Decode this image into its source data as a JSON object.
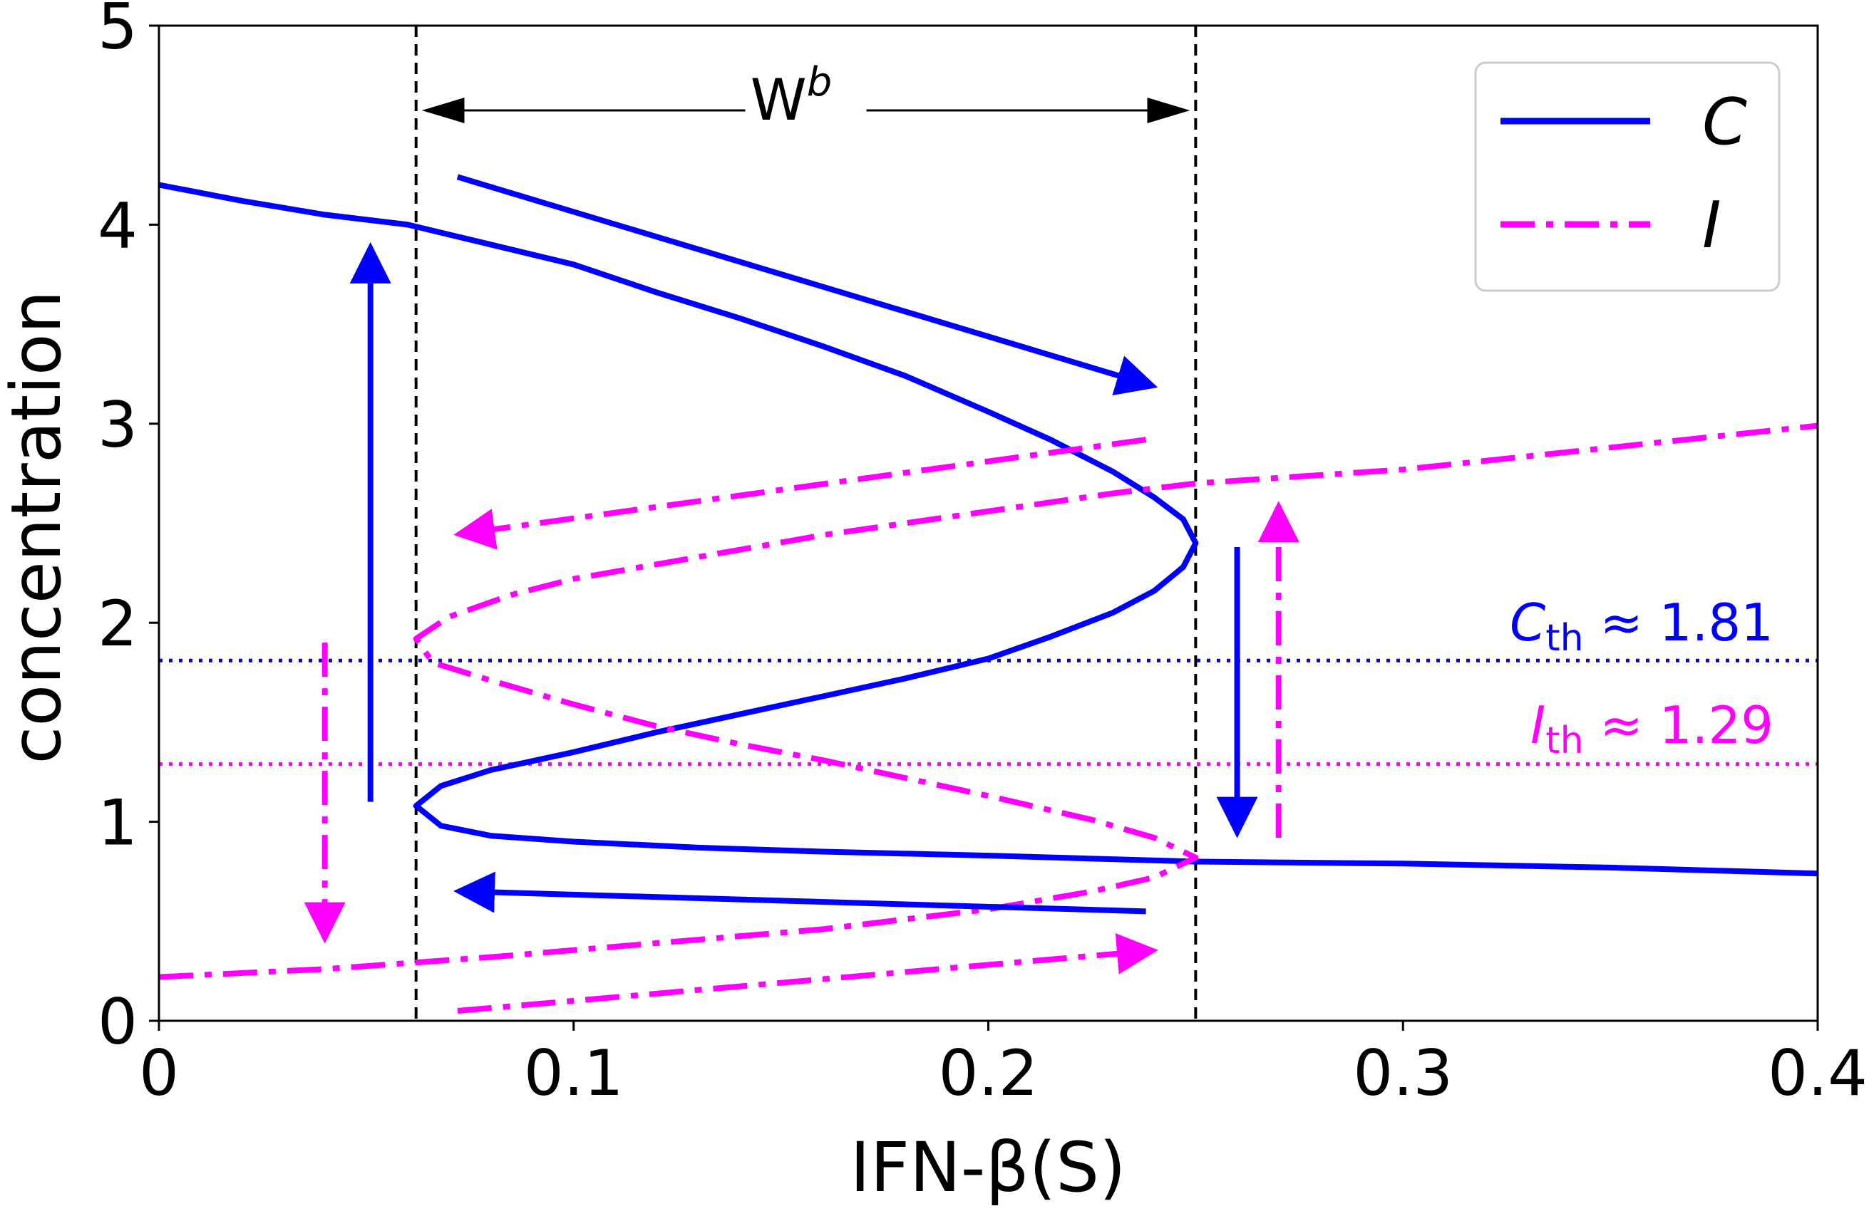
{
  "chart_data": {
    "type": "line",
    "xlabel": "IFN-β(S)",
    "ylabel": "concentration",
    "xlim": [
      0,
      0.4
    ],
    "ylim": [
      0,
      5
    ],
    "x_ticks": [
      "0",
      "0.1",
      "0.2",
      "0.3",
      "0.4"
    ],
    "y_ticks": [
      "0",
      "1",
      "2",
      "3",
      "4",
      "5"
    ],
    "grid": false,
    "legend_position": "top-right",
    "legend": [
      "C",
      "I"
    ],
    "colors": {
      "C": "#0000ff",
      "I": "#ff00ff",
      "guides": "#000000"
    },
    "series": [
      {
        "name": "C",
        "style": "solid",
        "points": [
          [
            0.0,
            4.2
          ],
          [
            0.02,
            4.12
          ],
          [
            0.04,
            4.05
          ],
          [
            0.06,
            4.0
          ],
          [
            0.08,
            3.9
          ],
          [
            0.1,
            3.8
          ],
          [
            0.12,
            3.66
          ],
          [
            0.14,
            3.53
          ],
          [
            0.16,
            3.39
          ],
          [
            0.18,
            3.24
          ],
          [
            0.2,
            3.06
          ],
          [
            0.215,
            2.92
          ],
          [
            0.23,
            2.76
          ],
          [
            0.24,
            2.63
          ],
          [
            0.247,
            2.52
          ],
          [
            0.25,
            2.4
          ],
          [
            0.247,
            2.28
          ],
          [
            0.24,
            2.16
          ],
          [
            0.23,
            2.05
          ],
          [
            0.215,
            1.93
          ],
          [
            0.2,
            1.82
          ],
          [
            0.18,
            1.72
          ],
          [
            0.16,
            1.63
          ],
          [
            0.14,
            1.54
          ],
          [
            0.12,
            1.45
          ],
          [
            0.1,
            1.35
          ],
          [
            0.08,
            1.26
          ],
          [
            0.068,
            1.18
          ],
          [
            0.062,
            1.08
          ],
          [
            0.068,
            0.98
          ],
          [
            0.08,
            0.93
          ],
          [
            0.1,
            0.9
          ],
          [
            0.13,
            0.87
          ],
          [
            0.16,
            0.85
          ],
          [
            0.2,
            0.83
          ],
          [
            0.25,
            0.8
          ],
          [
            0.3,
            0.79
          ],
          [
            0.35,
            0.77
          ],
          [
            0.4,
            0.74
          ]
        ]
      },
      {
        "name": "I",
        "style": "dashdot",
        "points": [
          [
            0.0,
            0.22
          ],
          [
            0.04,
            0.26
          ],
          [
            0.08,
            0.32
          ],
          [
            0.12,
            0.39
          ],
          [
            0.16,
            0.46
          ],
          [
            0.2,
            0.56
          ],
          [
            0.225,
            0.65
          ],
          [
            0.24,
            0.72
          ],
          [
            0.25,
            0.82
          ],
          [
            0.24,
            0.92
          ],
          [
            0.225,
            1.01
          ],
          [
            0.2,
            1.13
          ],
          [
            0.18,
            1.22
          ],
          [
            0.16,
            1.31
          ],
          [
            0.14,
            1.39
          ],
          [
            0.12,
            1.48
          ],
          [
            0.1,
            1.59
          ],
          [
            0.08,
            1.71
          ],
          [
            0.066,
            1.8
          ],
          [
            0.062,
            1.92
          ],
          [
            0.07,
            2.03
          ],
          [
            0.085,
            2.14
          ],
          [
            0.1,
            2.22
          ],
          [
            0.13,
            2.33
          ],
          [
            0.16,
            2.44
          ],
          [
            0.2,
            2.56
          ],
          [
            0.23,
            2.65
          ],
          [
            0.25,
            2.7
          ],
          [
            0.3,
            2.77
          ],
          [
            0.35,
            2.88
          ],
          [
            0.4,
            2.99
          ]
        ]
      }
    ],
    "thresholds": [
      {
        "series": "C",
        "value": 1.81,
        "label_sym": "C",
        "label_sub": "th",
        "label_rest": " ≈ 1.81"
      },
      {
        "series": "I",
        "value": 1.29,
        "label_sym": "I",
        "label_sub": "th",
        "label_rest": " ≈ 1.29"
      }
    ],
    "bistable_bounds": [
      0.062,
      0.25
    ],
    "window_label": {
      "main": "W",
      "sup": "b"
    },
    "annotation_arrows": [
      {
        "series": "C",
        "style": "solid",
        "from": [
          0.072,
          4.24
        ],
        "to": [
          0.238,
          3.2
        ]
      },
      {
        "series": "C",
        "style": "solid",
        "from": [
          0.051,
          1.1
        ],
        "to": [
          0.051,
          3.85
        ]
      },
      {
        "series": "C",
        "style": "solid",
        "from": [
          0.26,
          2.38
        ],
        "to": [
          0.26,
          0.98
        ]
      },
      {
        "series": "C",
        "style": "solid",
        "from": [
          0.238,
          0.55
        ],
        "to": [
          0.074,
          0.65
        ]
      },
      {
        "series": "I",
        "style": "dashdot",
        "from": [
          0.238,
          2.92
        ],
        "to": [
          0.074,
          2.45
        ]
      },
      {
        "series": "I",
        "style": "dashdot",
        "from": [
          0.04,
          1.9
        ],
        "to": [
          0.04,
          0.45
        ]
      },
      {
        "series": "I",
        "style": "dashdot",
        "from": [
          0.27,
          0.92
        ],
        "to": [
          0.27,
          2.55
        ]
      },
      {
        "series": "I",
        "style": "dashdot",
        "from": [
          0.072,
          0.05
        ],
        "to": [
          0.238,
          0.35
        ]
      }
    ]
  }
}
